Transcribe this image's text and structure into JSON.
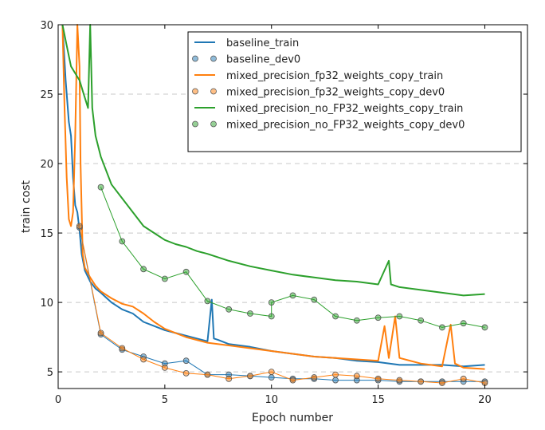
{
  "chart_data": {
    "type": "line",
    "xlabel": "Epoch number",
    "ylabel": "train cost",
    "xlim": [
      0,
      22
    ],
    "ylim": [
      3.8,
      30
    ],
    "x_ticks": [
      0,
      5,
      10,
      15,
      20
    ],
    "y_ticks": [
      5,
      10,
      15,
      20,
      25,
      30
    ],
    "grid": "horizontal dashed",
    "legend_position": "top-right",
    "series": [
      {
        "name": "baseline_train",
        "style": "line",
        "color": "#1f77b4",
        "points": [
          [
            0.2,
            30
          ],
          [
            0.35,
            26
          ],
          [
            0.5,
            23
          ],
          [
            0.6,
            22
          ],
          [
            0.7,
            19
          ],
          [
            0.8,
            17
          ],
          [
            0.9,
            16.5
          ],
          [
            1.0,
            15.2
          ],
          [
            1.1,
            13.5
          ],
          [
            1.25,
            12.3
          ],
          [
            1.5,
            11.5
          ],
          [
            1.75,
            11.0
          ],
          [
            2.0,
            10.7
          ],
          [
            2.5,
            10.0
          ],
          [
            3.0,
            9.5
          ],
          [
            3.5,
            9.2
          ],
          [
            4.0,
            8.6
          ],
          [
            4.5,
            8.3
          ],
          [
            5.0,
            8.0
          ],
          [
            5.5,
            7.8
          ],
          [
            6.0,
            7.6
          ],
          [
            6.5,
            7.4
          ],
          [
            7.0,
            7.2
          ],
          [
            7.2,
            10.2
          ],
          [
            7.3,
            7.4
          ],
          [
            7.5,
            7.3
          ],
          [
            8.0,
            7.0
          ],
          [
            9.0,
            6.8
          ],
          [
            10.0,
            6.5
          ],
          [
            11.0,
            6.3
          ],
          [
            12.0,
            6.1
          ],
          [
            13.0,
            6.0
          ],
          [
            14.0,
            5.8
          ],
          [
            15.0,
            5.7
          ],
          [
            16.0,
            5.5
          ],
          [
            17.0,
            5.5
          ],
          [
            18.0,
            5.5
          ],
          [
            19.0,
            5.4
          ],
          [
            20.0,
            5.5
          ]
        ]
      },
      {
        "name": "baseline_dev0",
        "style": "markers",
        "color": "#1f77b4",
        "points": [
          [
            1,
            15.4
          ],
          [
            2,
            7.7
          ],
          [
            3,
            6.6
          ],
          [
            4,
            6.1
          ],
          [
            5,
            5.6
          ],
          [
            6,
            5.8
          ],
          [
            7,
            4.8
          ],
          [
            8,
            4.8
          ],
          [
            9,
            4.7
          ],
          [
            10,
            4.6
          ],
          [
            11,
            4.5
          ],
          [
            12,
            4.5
          ],
          [
            13,
            4.4
          ],
          [
            14,
            4.4
          ],
          [
            15,
            4.4
          ],
          [
            16,
            4.3
          ],
          [
            17,
            4.3
          ],
          [
            18,
            4.3
          ],
          [
            19,
            4.3
          ],
          [
            20,
            4.3
          ]
        ]
      },
      {
        "name": "mixed_precision_fp32_weights_copy_train",
        "style": "line",
        "color": "#ff7f0e",
        "points": [
          [
            0.2,
            30
          ],
          [
            0.3,
            24
          ],
          [
            0.4,
            19
          ],
          [
            0.5,
            16
          ],
          [
            0.6,
            15.5
          ],
          [
            0.7,
            16.5
          ],
          [
            0.8,
            22
          ],
          [
            0.9,
            30
          ],
          [
            1.0,
            27
          ],
          [
            1.05,
            20
          ],
          [
            1.15,
            13.5
          ],
          [
            1.25,
            12.5
          ],
          [
            1.5,
            11.8
          ],
          [
            1.75,
            11.2
          ],
          [
            2.0,
            10.8
          ],
          [
            2.5,
            10.3
          ],
          [
            3.0,
            9.9
          ],
          [
            3.5,
            9.7
          ],
          [
            4.0,
            9.2
          ],
          [
            4.5,
            8.6
          ],
          [
            5.0,
            8.1
          ],
          [
            5.5,
            7.8
          ],
          [
            6.0,
            7.5
          ],
          [
            6.5,
            7.3
          ],
          [
            7.0,
            7.1
          ],
          [
            8.0,
            6.9
          ],
          [
            9.0,
            6.7
          ],
          [
            10.0,
            6.5
          ],
          [
            11.0,
            6.3
          ],
          [
            12.0,
            6.1
          ],
          [
            13.0,
            6.0
          ],
          [
            14.0,
            5.9
          ],
          [
            15.0,
            5.8
          ],
          [
            15.3,
            8.3
          ],
          [
            15.5,
            6.0
          ],
          [
            15.8,
            9.0
          ],
          [
            16.0,
            6.0
          ],
          [
            17.0,
            5.6
          ],
          [
            18.0,
            5.4
          ],
          [
            18.4,
            8.4
          ],
          [
            18.6,
            5.6
          ],
          [
            19.0,
            5.3
          ],
          [
            20.0,
            5.2
          ]
        ]
      },
      {
        "name": "mixed_precision_fp32_weights_copy_dev0",
        "style": "markers",
        "color": "#ff7f0e",
        "points": [
          [
            1,
            15.5
          ],
          [
            2,
            7.8
          ],
          [
            3,
            6.7
          ],
          [
            4,
            5.9
          ],
          [
            5,
            5.3
          ],
          [
            6,
            4.9
          ],
          [
            7,
            4.8
          ],
          [
            8,
            4.5
          ],
          [
            9,
            4.7
          ],
          [
            10,
            5.0
          ],
          [
            11,
            4.4
          ],
          [
            12,
            4.6
          ],
          [
            13,
            4.8
          ],
          [
            14,
            4.7
          ],
          [
            15,
            4.5
          ],
          [
            16,
            4.4
          ],
          [
            17,
            4.3
          ],
          [
            18,
            4.2
          ],
          [
            19,
            4.5
          ],
          [
            20,
            4.2
          ]
        ]
      },
      {
        "name": "mixed_precision_no_FP32_weights_copy_train",
        "style": "line",
        "color": "#2ca02c",
        "points": [
          [
            0.2,
            30
          ],
          [
            0.4,
            28.5
          ],
          [
            0.6,
            27
          ],
          [
            0.8,
            26.5
          ],
          [
            1.0,
            26
          ],
          [
            1.2,
            25
          ],
          [
            1.4,
            24
          ],
          [
            1.5,
            30
          ],
          [
            1.6,
            24
          ],
          [
            1.75,
            22
          ],
          [
            2.0,
            20.5
          ],
          [
            2.5,
            18.5
          ],
          [
            3.0,
            17.5
          ],
          [
            3.5,
            16.5
          ],
          [
            4.0,
            15.5
          ],
          [
            4.5,
            15.0
          ],
          [
            5.0,
            14.5
          ],
          [
            5.5,
            14.2
          ],
          [
            6.0,
            14.0
          ],
          [
            6.5,
            13.7
          ],
          [
            7.0,
            13.5
          ],
          [
            8.0,
            13.0
          ],
          [
            9.0,
            12.6
          ],
          [
            10.0,
            12.3
          ],
          [
            11.0,
            12.0
          ],
          [
            12.0,
            11.8
          ],
          [
            13.0,
            11.6
          ],
          [
            14.0,
            11.5
          ],
          [
            15.0,
            11.3
          ],
          [
            15.5,
            13.0
          ],
          [
            15.6,
            11.3
          ],
          [
            16.0,
            11.1
          ],
          [
            17.0,
            10.9
          ],
          [
            18.0,
            10.7
          ],
          [
            19.0,
            10.5
          ],
          [
            20.0,
            10.6
          ]
        ]
      },
      {
        "name": "mixed_precision_no_FP32_weights_copy_dev0",
        "style": "markers",
        "color": "#2ca02c",
        "points": [
          [
            2,
            18.3
          ],
          [
            3,
            14.4
          ],
          [
            4,
            12.4
          ],
          [
            5,
            11.7
          ],
          [
            6,
            12.2
          ],
          [
            7,
            10.1
          ],
          [
            8,
            9.5
          ],
          [
            9,
            9.2
          ],
          [
            10,
            9.0
          ],
          [
            10,
            10.0
          ],
          [
            11,
            10.5
          ],
          [
            12,
            10.2
          ],
          [
            13,
            9.0
          ],
          [
            14,
            8.7
          ],
          [
            15,
            8.9
          ],
          [
            16,
            9.0
          ],
          [
            17,
            8.7
          ],
          [
            18,
            8.2
          ],
          [
            19,
            8.5
          ],
          [
            20,
            8.2
          ]
        ]
      }
    ]
  }
}
